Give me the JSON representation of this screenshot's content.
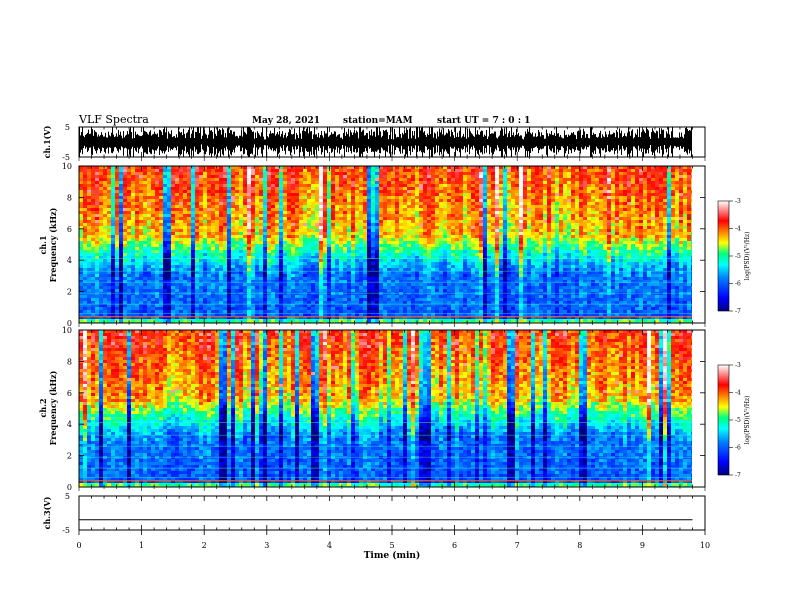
{
  "header": {
    "title": "VLF Spectra",
    "date": "May 28, 2021",
    "station": "station=MAM",
    "start": "start  UT  =   7 : 0  : 1"
  },
  "chart_data": [
    {
      "type": "line",
      "name": "ch1-waveform",
      "ylabel": "ch.1(V)",
      "ylim": [
        -5,
        5
      ],
      "yticks": [
        "5",
        "-5"
      ],
      "xlim": [
        0,
        10
      ]
    },
    {
      "type": "heatmap",
      "name": "ch1-spectrogram",
      "ylabel_lines": [
        "ch.1",
        "Frequency (kHz)"
      ],
      "ylim": [
        0,
        10
      ],
      "yticks": [
        "0",
        "2",
        "4",
        "6",
        "8",
        "10"
      ],
      "xlim": [
        0,
        10
      ],
      "colorbar": {
        "label": "log(PSD)(V²/Hz)",
        "range": [
          -7,
          -3
        ],
        "ticks": [
          "-3",
          "-4",
          "-5",
          "-6",
          "-7"
        ]
      }
    },
    {
      "type": "heatmap",
      "name": "ch2-spectrogram",
      "ylabel_lines": [
        "ch.2",
        "Frequency (kHz)"
      ],
      "ylim": [
        0,
        10
      ],
      "yticks": [
        "0",
        "2",
        "4",
        "6",
        "8",
        "10"
      ],
      "xlim": [
        0,
        10
      ],
      "colorbar": {
        "label": "log(PSD)(V²/Hz)",
        "range": [
          -7,
          -3
        ],
        "ticks": [
          "-3",
          "-4",
          "-5",
          "-6",
          "-7"
        ]
      }
    },
    {
      "type": "line",
      "name": "ch3-waveform",
      "ylabel": "ch.3(V)",
      "ylim": [
        -5,
        5
      ],
      "yticks": [
        "5",
        "-5"
      ],
      "x": [
        0,
        9.8
      ],
      "values": [
        -2,
        -2
      ],
      "xlim": [
        0,
        10
      ],
      "xticks": [
        "0",
        "1",
        "2",
        "3",
        "4",
        "5",
        "6",
        "7",
        "8",
        "9",
        "10"
      ],
      "xlabel": "Time  (min)"
    }
  ],
  "colors": {
    "waveform": "#000000",
    "colormap": [
      "#000080",
      "#0000ff",
      "#0080ff",
      "#00ffff",
      "#00ff80",
      "#ffff00",
      "#ff8000",
      "#ff0000",
      "#ffffff"
    ]
  }
}
